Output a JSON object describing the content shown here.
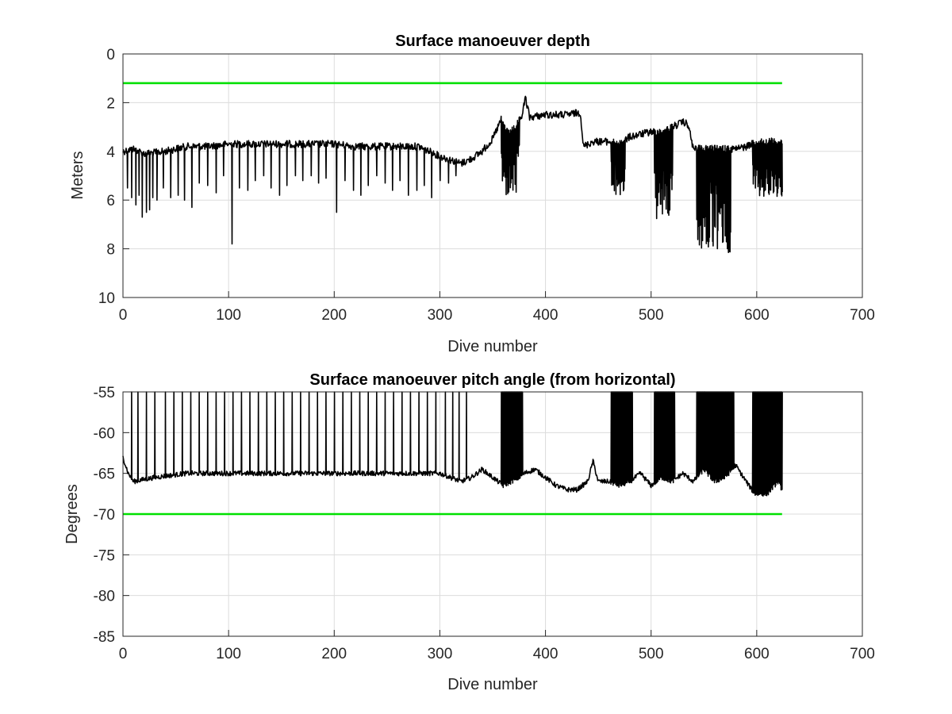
{
  "chart_data": [
    {
      "type": "line",
      "title": "Surface manoeuver depth",
      "xlabel": "Dive number",
      "ylabel": "Meters",
      "xlim": [
        0,
        700
      ],
      "ylim": [
        0,
        10
      ],
      "y_reversed": true,
      "xticks": [
        0,
        100,
        200,
        300,
        400,
        500,
        600,
        700
      ],
      "yticks": [
        0,
        2,
        4,
        6,
        8,
        10
      ],
      "grid": true,
      "series": [
        {
          "color": "#000000",
          "style": "oscillating",
          "x": [
            0,
            10,
            20,
            40,
            60,
            80,
            100,
            120,
            140,
            160,
            180,
            200,
            220,
            240,
            260,
            280,
            300,
            320,
            330,
            340,
            350,
            358,
            365,
            372,
            378,
            381,
            385,
            400,
            420,
            433,
            436,
            445,
            455,
            462,
            470,
            480,
            490,
            500,
            510,
            520,
            530,
            535,
            540,
            550,
            560,
            570,
            580,
            590,
            600,
            610,
            620,
            624
          ],
          "y": [
            4.0,
            3.9,
            4.1,
            4.0,
            3.8,
            3.8,
            3.7,
            3.7,
            3.7,
            3.7,
            3.7,
            3.7,
            3.8,
            3.8,
            3.8,
            3.8,
            4.2,
            4.5,
            4.3,
            4.0,
            3.5,
            2.7,
            3.3,
            3.0,
            2.5,
            1.8,
            2.6,
            2.5,
            2.5,
            2.4,
            3.8,
            3.6,
            3.6,
            3.6,
            3.7,
            3.4,
            3.3,
            3.2,
            3.2,
            3.0,
            2.8,
            2.9,
            3.9,
            3.9,
            3.9,
            3.9,
            3.9,
            3.8,
            3.6,
            3.6,
            3.6,
            3.6
          ],
          "spikes": [
            [
              4,
              5.5
            ],
            [
              8,
              5.9
            ],
            [
              12,
              6.2
            ],
            [
              15,
              5.8
            ],
            [
              18,
              6.7
            ],
            [
              22,
              6.5
            ],
            [
              25,
              6.4
            ],
            [
              28,
              5.9
            ],
            [
              32,
              6.0
            ],
            [
              38,
              5.5
            ],
            [
              45,
              5.9
            ],
            [
              52,
              5.8
            ],
            [
              58,
              6.0
            ],
            [
              65,
              6.3
            ],
            [
              72,
              5.3
            ],
            [
              80,
              5.4
            ],
            [
              88,
              5.7
            ],
            [
              95,
              5.0
            ],
            [
              103,
              7.8
            ],
            [
              110,
              5.5
            ],
            [
              118,
              5.6
            ],
            [
              125,
              5.2
            ],
            [
              133,
              5.0
            ],
            [
              140,
              5.5
            ],
            [
              148,
              5.8
            ],
            [
              155,
              5.4
            ],
            [
              163,
              5.0
            ],
            [
              170,
              5.2
            ],
            [
              178,
              5.0
            ],
            [
              185,
              5.3
            ],
            [
              192,
              5.1
            ],
            [
              202,
              6.5
            ],
            [
              210,
              5.2
            ],
            [
              218,
              5.6
            ],
            [
              225,
              5.8
            ],
            [
              232,
              5.4
            ],
            [
              240,
              5.0
            ],
            [
              248,
              5.3
            ],
            [
              255,
              5.6
            ],
            [
              262,
              5.2
            ],
            [
              270,
              5.8
            ],
            [
              278,
              5.6
            ],
            [
              285,
              5.4
            ],
            [
              292,
              5.9
            ],
            [
              300,
              5.2
            ],
            [
              308,
              5.3
            ],
            [
              315,
              5.0
            ]
          ],
          "dense_bands": [
            [
              358,
              375,
              5.9
            ],
            [
              462,
              475,
              5.9
            ],
            [
              503,
              520,
              6.9
            ],
            [
              543,
              575,
              8.2
            ],
            [
              596,
              624,
              6.0
            ]
          ]
        },
        {
          "color": "#00e000",
          "x": [
            0,
            624
          ],
          "y": [
            1.2,
            1.2
          ]
        }
      ]
    },
    {
      "type": "line",
      "title": "Surface manoeuver pitch angle (from horizontal)",
      "xlabel": "Dive number",
      "ylabel": "Degrees",
      "xlim": [
        0,
        700
      ],
      "ylim": [
        -85,
        -55
      ],
      "xticks": [
        0,
        100,
        200,
        300,
        400,
        500,
        600,
        700
      ],
      "yticks": [
        -55,
        -60,
        -65,
        -70,
        -75,
        -80,
        -85
      ],
      "grid": true,
      "series": [
        {
          "color": "#000000",
          "style": "oscillating",
          "x": [
            0,
            5,
            10,
            30,
            60,
            100,
            150,
            200,
            250,
            300,
            320,
            330,
            340,
            350,
            360,
            375,
            380,
            390,
            400,
            410,
            420,
            430,
            440,
            445,
            450,
            460,
            470,
            480,
            490,
            500,
            510,
            520,
            530,
            540,
            550,
            560,
            570,
            580,
            590,
            598,
            610,
            620,
            624
          ],
          "y": [
            -63.0,
            -65.0,
            -66.0,
            -65.5,
            -65.0,
            -65.0,
            -65.0,
            -65.0,
            -65.0,
            -65.0,
            -66.0,
            -65.5,
            -64.5,
            -65.5,
            -66.5,
            -65.5,
            -65.0,
            -64.5,
            -65.5,
            -66.5,
            -67.0,
            -67.0,
            -66.0,
            -63.5,
            -66.0,
            -66.0,
            -66.5,
            -66.0,
            -65.0,
            -66.5,
            -65.5,
            -66.0,
            -65.0,
            -66.0,
            -64.5,
            -66.0,
            -65.5,
            -64.0,
            -66.0,
            -67.5,
            -67.5,
            -66.0,
            -67.0
          ],
          "spikes_to_top": [
            8,
            14,
            22,
            30,
            40,
            48,
            56,
            64,
            72,
            80,
            88,
            96,
            104,
            112,
            120,
            128,
            136,
            144,
            152,
            160,
            168,
            176,
            184,
            192,
            200,
            208,
            216,
            224,
            232,
            240,
            248,
            256,
            264,
            272,
            280,
            288,
            296,
            305,
            312,
            318,
            325
          ],
          "dense_bands": [
            [
              358,
              378
            ],
            [
              462,
              482
            ],
            [
              503,
              522
            ],
            [
              543,
              578
            ],
            [
              596,
              624
            ]
          ]
        },
        {
          "color": "#00e000",
          "x": [
            0,
            624
          ],
          "y": [
            -70,
            -70
          ]
        }
      ]
    }
  ]
}
